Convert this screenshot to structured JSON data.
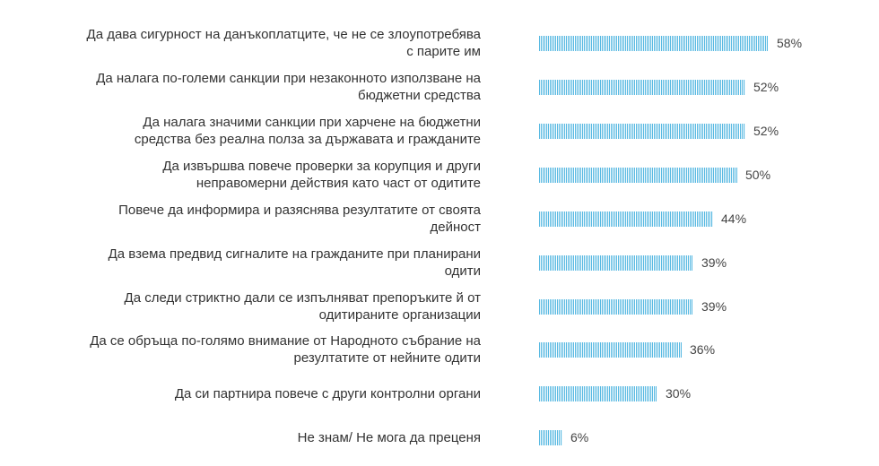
{
  "chart_data": {
    "type": "bar",
    "orientation": "horizontal",
    "categories": [
      "Да дава сигурност на данъкоплатците, че не се злоупотребява с парите им",
      "Да налага по-големи санкции при незаконното използване на бюджетни средства",
      "Да налага значими санкции при харчене на бюджетни средства без реална полза за държавата и гражданите",
      "Да извършва повече проверки за корупция и други неправомерни действия като част от одитите",
      "Повече да информира и разяснява резултатите от своята дейност",
      "Да взема предвид сигналите на гражданите при планирани одити",
      "Да следи стриктно дали се изпълняват препоръките й от одитираните организации",
      "Да се обръща по-голямо внимание от Народното събрание на резултатите от нейните одити",
      "Да си партнира повече с други контролни органи",
      "Не знам/ Не мога да преценя"
    ],
    "values": [
      58,
      52,
      52,
      50,
      44,
      39,
      39,
      36,
      30,
      6
    ],
    "value_labels": [
      "58%",
      "52%",
      "52%",
      "50%",
      "44%",
      "39%",
      "39%",
      "36%",
      "30%",
      "6%"
    ],
    "unit": "%",
    "xlim": [
      0,
      58
    ],
    "grid": false,
    "legend": "none",
    "bar_color": "#58b9e2"
  }
}
